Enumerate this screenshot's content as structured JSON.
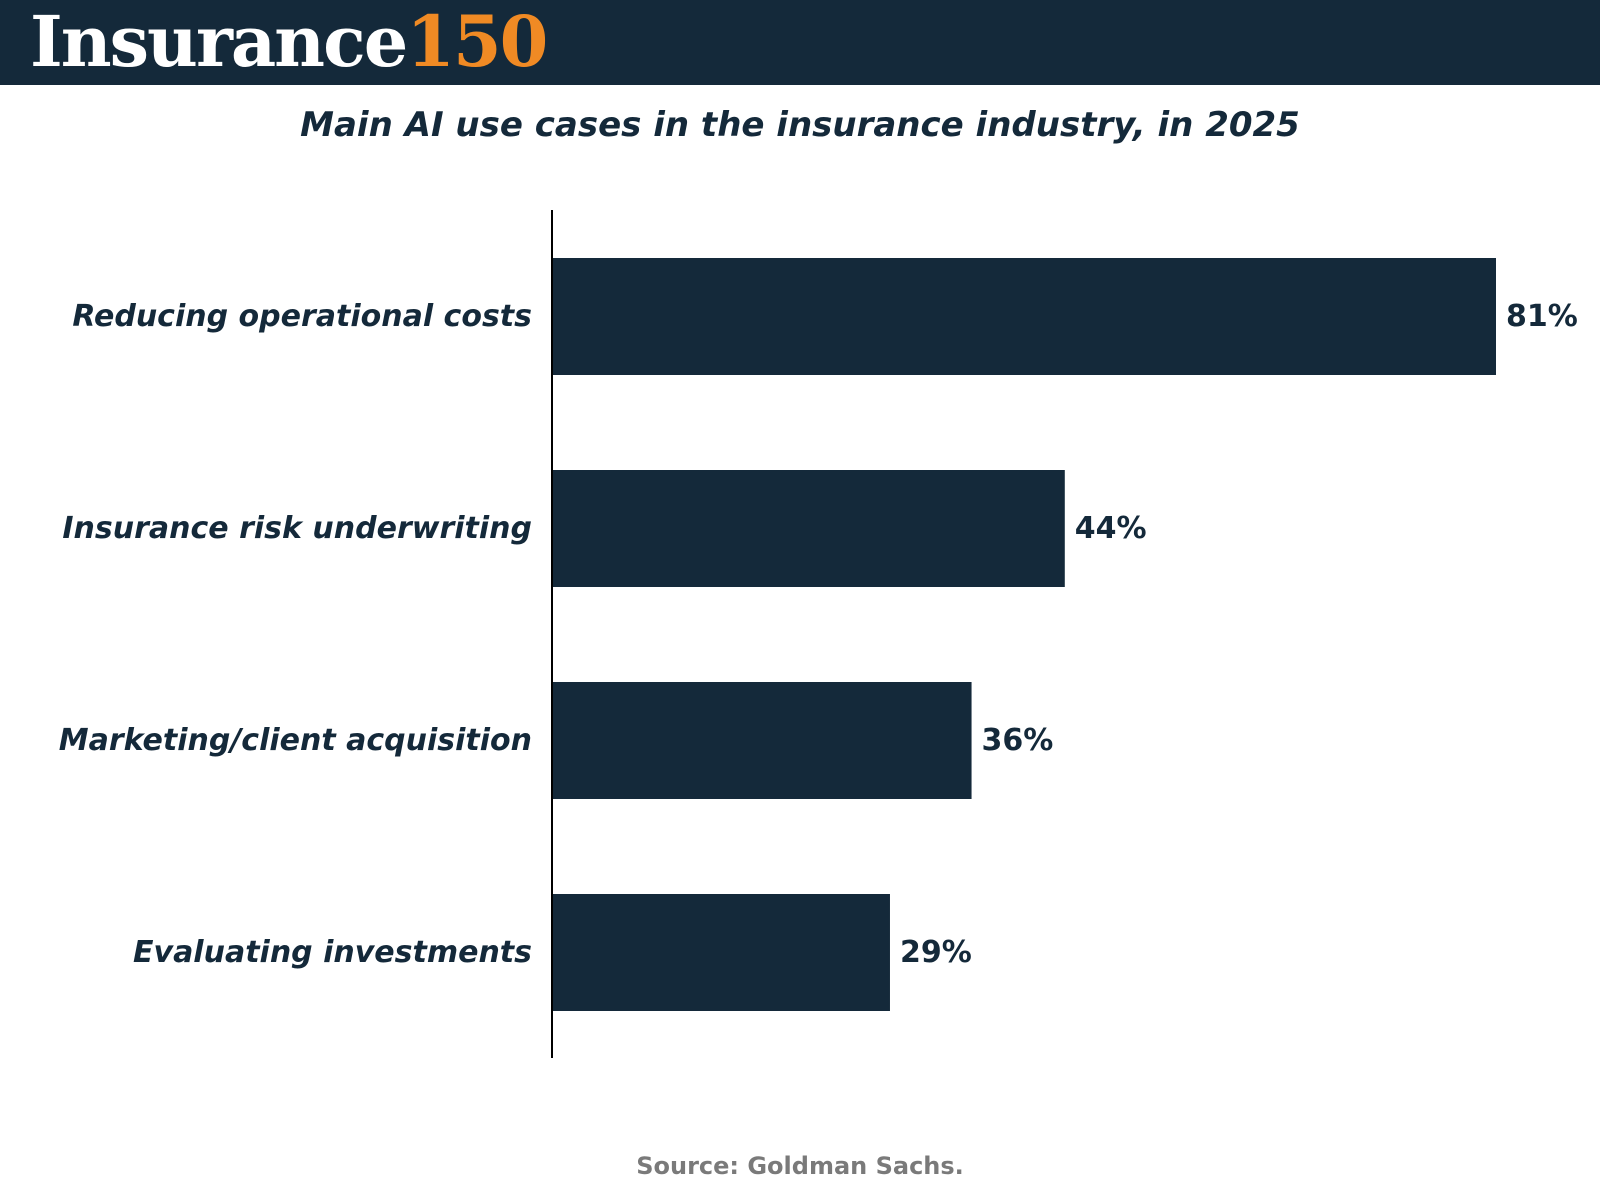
{
  "header": {
    "logo_word": "Insurance",
    "logo_number": "150",
    "background_color": "#14293a",
    "accent_color": "#f08a24"
  },
  "chart_data": {
    "type": "bar",
    "orientation": "horizontal",
    "title": "Main AI use cases in the insurance industry, in 2025",
    "categories": [
      "Reducing operational costs",
      "Insurance risk underwriting",
      "Marketing/client acquisition",
      "Evaluating investments"
    ],
    "values": [
      81,
      44,
      36,
      29
    ],
    "value_labels": [
      "81%",
      "44%",
      "36%",
      "29%"
    ],
    "unit": "%",
    "xlim": [
      0,
      81
    ],
    "bar_color": "#14293a",
    "grid": false,
    "legend": "none"
  },
  "footer": {
    "source": "Source: Goldman Sachs."
  }
}
